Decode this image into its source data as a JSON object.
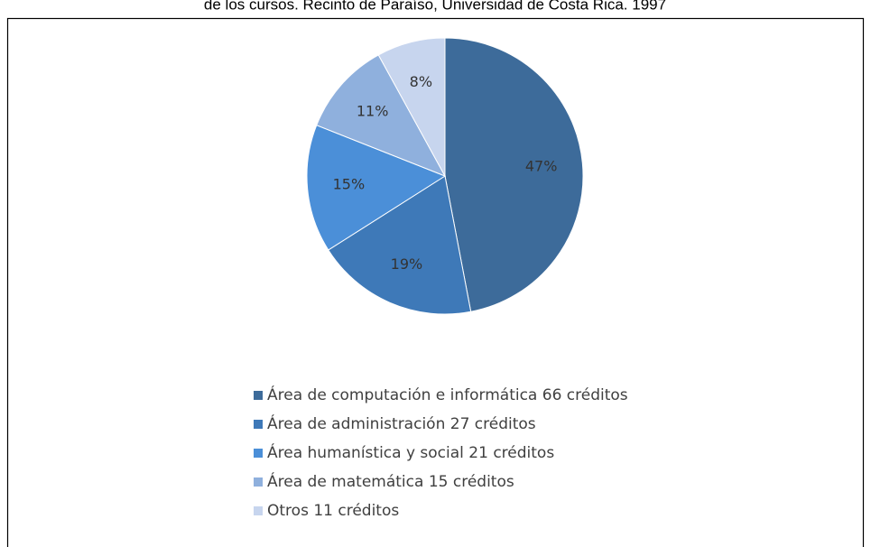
{
  "chart_data": {
    "type": "pie",
    "title": "de los cursos.  Recinto de Paraíso, Universidad de Costa Rica. 1997",
    "categories": [
      "Área de computación e informática 66 créditos",
      "Área de administración 27 créditos",
      "Área humanística y social 21 créditos",
      "Área de matemática 15 créditos",
      "Otros 11 créditos"
    ],
    "values": [
      47,
      19,
      15,
      11,
      8
    ],
    "value_labels": [
      "47%",
      "19%",
      "15%",
      "11%",
      "8%"
    ],
    "colors": [
      "#3d6b9a",
      "#3e79b8",
      "#4b8fd8",
      "#8fb0dd",
      "#c7d5ee"
    ],
    "legend": "bottom"
  }
}
